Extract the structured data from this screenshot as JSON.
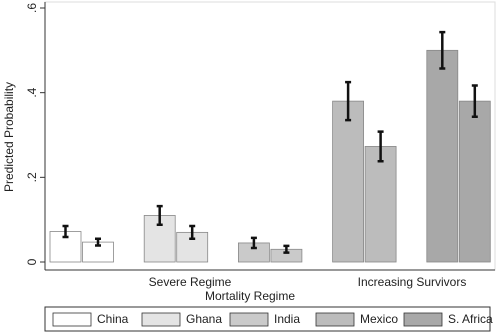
{
  "chart_data": {
    "type": "bar",
    "y_label": "Predicted Probability",
    "x_label": "Mortality Regime",
    "categories": [
      "Severe Regime",
      "Increasing Survivors"
    ],
    "series": [
      {
        "name": "China",
        "color": "#ffffff",
        "values": [
          0.072,
          0.047
        ],
        "errors": [
          0.013,
          0.008
        ]
      },
      {
        "name": "Ghana",
        "color": "#e4e4e4",
        "values": [
          0.11,
          0.07
        ],
        "errors": [
          0.022,
          0.015
        ]
      },
      {
        "name": "India",
        "color": "#cacaca",
        "values": [
          0.045,
          0.03
        ],
        "errors": [
          0.012,
          0.008
        ]
      },
      {
        "name": "Mexico",
        "color": "#bcbcbc",
        "values": [
          0.38,
          0.273
        ],
        "errors": [
          0.045,
          0.035
        ]
      },
      {
        "name": "S. Africa",
        "color": "#a8a8a8",
        "values": [
          0.5,
          0.38
        ],
        "errors": [
          0.043,
          0.037
        ]
      }
    ],
    "ylim": [
      0,
      0.6
    ],
    "yticks": [
      0,
      {
        "value": 0.2,
        "label": ".2"
      },
      {
        "value": 0.4,
        "label": ".4"
      },
      {
        "value": 0.6,
        "label": ".6"
      }
    ],
    "legend": "bottom"
  }
}
